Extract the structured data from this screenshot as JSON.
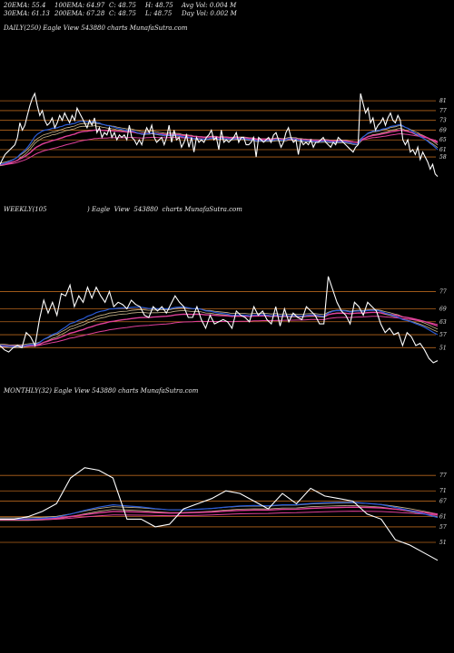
{
  "header": {
    "row1": [
      "20EMA: 55.4",
      "100EMA: 64.97",
      "C: 48.75",
      "H: 48.75",
      "Avg Vol: 0.004  M"
    ],
    "row2": [
      "30EMA: 61.13",
      "200EMA: 67.28",
      "C: 48.75",
      "L: 48.75",
      "Day Vol: 0.002  M"
    ]
  },
  "colors": {
    "background": "#000000",
    "price": "#ffffff",
    "ema_blue": "#2a5bd7",
    "ema_pink": "#e0409a",
    "ema_tan": "#c8b48a",
    "level_line": "#b5651d"
  },
  "chart_data": [
    {
      "type": "line",
      "title": "DAILY(250) Eagle  View  543880  charts MunafaSutra.com",
      "yticks": [
        81,
        77,
        73,
        69,
        65,
        61,
        58
      ],
      "ylim": [
        48,
        87
      ],
      "series": [
        {
          "values": [
            55.0,
            57.0,
            59.0,
            60.0,
            61.0,
            62.0,
            63.0,
            66.0,
            72.0,
            69.0,
            71.0,
            75.0,
            79.0,
            82.0,
            84.0,
            79.0,
            75.0,
            77.0,
            73.0,
            71.0,
            72.0,
            74.0,
            70.0,
            72.0,
            75.0,
            73.0,
            76.0,
            74.0,
            72.0,
            75.0,
            73.0,
            78.0,
            76.0,
            74.0,
            72.0,
            70.0,
            73.0,
            71.0,
            74.0,
            68.0,
            70.0,
            66.0,
            68.0,
            67.0,
            70.0,
            66.0,
            68.0,
            65.0,
            67.0,
            66.0,
            67.0,
            65.0,
            71.0,
            66.0,
            65.0,
            63.0,
            65.0,
            63.0,
            67.0,
            70.0,
            68.0,
            71.0,
            66.0,
            64.0,
            65.0,
            66.0,
            63.0,
            66.0,
            71.0,
            64.0,
            69.0,
            65.0,
            66.0,
            62.0,
            64.0,
            67.0,
            62.0,
            66.0,
            60.0,
            66.0,
            64.0,
            65.0,
            64.0,
            66.0,
            67.0,
            69.0,
            65.0,
            66.0,
            61.0,
            69.0,
            64.0,
            65.0,
            64.0,
            65.0,
            66.0,
            68.0,
            64.0,
            66.0,
            66.0,
            63.0,
            63.0,
            64.0,
            66.0,
            58.0,
            66.0,
            65.0,
            64.0,
            65.0,
            66.0,
            64.0,
            67.0,
            68.0,
            65.0,
            62.0,
            64.0,
            68.0,
            70.0,
            66.0,
            64.0,
            65.0,
            59.0,
            65.0,
            63.0,
            64.0,
            63.0,
            65.0,
            62.0,
            64.0,
            64.0,
            65.0,
            66.0,
            64.0,
            63.0,
            62.0,
            64.0,
            63.0,
            66.0,
            65.0,
            64.0,
            63.0,
            62.0,
            61.0,
            60.0,
            62.0,
            63.0,
            84.0,
            80.0,
            76.0,
            78.0,
            72.0,
            74.0,
            69.0,
            71.0,
            72.0,
            74.0,
            71.0,
            74.0,
            76.0,
            73.0,
            72.0,
            75.0,
            73.0,
            65.0,
            63.0,
            65.0,
            60.0,
            61.0,
            59.0,
            62.0,
            57.0,
            60.0,
            58.0,
            56.0,
            53.0,
            55.0,
            51.0,
            50.0
          ],
          "note_ema_levels": "close"
        },
        {
          "name": "",
          "values": []
        }
      ],
      "ema_series": {
        "blue": [
          59,
          60,
          61,
          62,
          63,
          64,
          65,
          66,
          67,
          68,
          69,
          70,
          71,
          72,
          73,
          74,
          74,
          74,
          74,
          74,
          74,
          74,
          74,
          74,
          74,
          74,
          74,
          74,
          74,
          74,
          74,
          74,
          74,
          73,
          73,
          72,
          72,
          71,
          71,
          70,
          70,
          69,
          69,
          68,
          68,
          68,
          67,
          67,
          67,
          67,
          67,
          66,
          66,
          66,
          66,
          65,
          65,
          65,
          65,
          65,
          65,
          65,
          65,
          65,
          65,
          65,
          65,
          65,
          65,
          65,
          65,
          65,
          65,
          65,
          65,
          65,
          65,
          65,
          64,
          64,
          64,
          64,
          64,
          64,
          64,
          64,
          64,
          65,
          65,
          65,
          65,
          65,
          65,
          65,
          65,
          65,
          65,
          65,
          65,
          65,
          65,
          65,
          65,
          64,
          64,
          64,
          64,
          64,
          64,
          64,
          64,
          64,
          64,
          64,
          64,
          64,
          64,
          64,
          64,
          64,
          64,
          64,
          64,
          64,
          64,
          64,
          64,
          64,
          64,
          64,
          64,
          64,
          64,
          64,
          64,
          64,
          64,
          64,
          64,
          64,
          64,
          64,
          64,
          63,
          63,
          63,
          63,
          64,
          65,
          66,
          67,
          68,
          69,
          70,
          70,
          71,
          71,
          71,
          72,
          72,
          72,
          72,
          72,
          72,
          72,
          71,
          70,
          69,
          68,
          67,
          66,
          65,
          64,
          63,
          62,
          61,
          60,
          59,
          58,
          57
        ],
        "pink_level": 67.5,
        "tan_level": 68.5
      },
      "levels": [
        81,
        77,
        73,
        69,
        65,
        61,
        58
      ]
    },
    {
      "type": "line",
      "title": "WEEKLY(105                    ) Eagle  View  543880  charts MunafaSutra.com",
      "yticks": [
        77,
        69,
        63,
        57,
        51
      ],
      "ylim": [
        44,
        86
      ],
      "series": [
        {
          "values": [
            52,
            50,
            49,
            51,
            52,
            51,
            58,
            56,
            52,
            64,
            73,
            67,
            72,
            66,
            76,
            75,
            80,
            70,
            75,
            72,
            79,
            74,
            79,
            75,
            72,
            77,
            70,
            72,
            71,
            69,
            73,
            71,
            70,
            66,
            65,
            70,
            68,
            70,
            67,
            71,
            75,
            72,
            70,
            65,
            65,
            70,
            64,
            60,
            66,
            62,
            63,
            64,
            63,
            60,
            68,
            66,
            65,
            63,
            70,
            66,
            68,
            64,
            62,
            70,
            61,
            69,
            63,
            67,
            65,
            64,
            70,
            68,
            66,
            62,
            62,
            84,
            78,
            72,
            68,
            66,
            62,
            72,
            70,
            66,
            72,
            70,
            68,
            62,
            58,
            60,
            57,
            58,
            52,
            58,
            56,
            52,
            53,
            50,
            46,
            44,
            45
          ]
        }
      ],
      "ema_series": {
        "blue": [
          52,
          53,
          54,
          55,
          56,
          57,
          58,
          59,
          60,
          61,
          62,
          63,
          64,
          65,
          66,
          67,
          68,
          69,
          69,
          70,
          70,
          71,
          71,
          71,
          71,
          71,
          71,
          71,
          71,
          70,
          70,
          70,
          70,
          69,
          69,
          69,
          69,
          69,
          69,
          69,
          69,
          69,
          69,
          69,
          68,
          68,
          68,
          68,
          67,
          67,
          67,
          67,
          66,
          66,
          66,
          66,
          66,
          66,
          66,
          66,
          66,
          66,
          66,
          66,
          66,
          66,
          66,
          66,
          66,
          66,
          66,
          66,
          66,
          66,
          66,
          67,
          67,
          67,
          67,
          67,
          67,
          67,
          67,
          67,
          67,
          67,
          67,
          66,
          66,
          65,
          65,
          64,
          64,
          63,
          62,
          61,
          60,
          59,
          58,
          57,
          56
        ]
      },
      "levels": [
        77,
        69,
        63,
        57,
        51
      ]
    },
    {
      "type": "line",
      "title": "MONTHLY(32) Eagle  View  543880  charts MunafaSutra.com",
      "yticks": [
        77,
        71,
        67,
        61,
        57,
        51
      ],
      "ylim": [
        45,
        82
      ],
      "series": [
        {
          "values": [
            60,
            60,
            61,
            63,
            66,
            76,
            80,
            79,
            76,
            60,
            60,
            57,
            58,
            64,
            66,
            68,
            71,
            70,
            67,
            64,
            70,
            66,
            72,
            69,
            68,
            67,
            62,
            60,
            52,
            50,
            47,
            44
          ]
        }
      ],
      "levels": [
        77,
        71,
        67,
        61,
        57,
        51
      ]
    }
  ]
}
